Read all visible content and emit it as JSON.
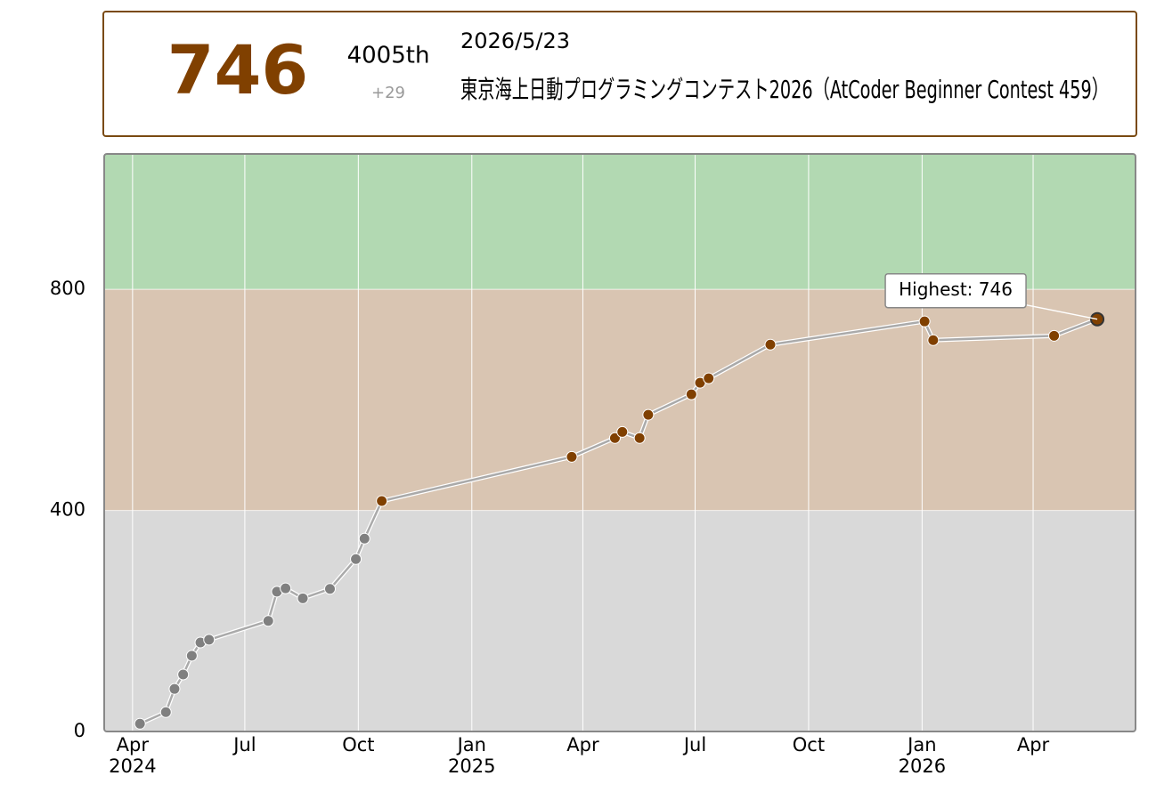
{
  "header": {
    "rating": 746,
    "rank": "4005th",
    "diff": "+29",
    "date": "2026/5/23",
    "contest": "東京海上日動プログラミングコンテスト2026（AtCoder Beginner Contest 459）"
  },
  "chart_data": {
    "type": "line",
    "x": [
      "2024-04-07",
      "2024-04-28",
      "2024-05-05",
      "2024-05-12",
      "2024-05-19",
      "2024-05-26",
      "2024-06-02",
      "2024-07-20",
      "2024-07-27",
      "2024-08-03",
      "2024-08-17",
      "2024-09-08",
      "2024-09-29",
      "2024-10-06",
      "2024-10-20",
      "2025-03-23",
      "2025-04-27",
      "2025-05-03",
      "2025-05-17",
      "2025-05-24",
      "2025-06-28",
      "2025-07-05",
      "2025-07-12",
      "2025-08-31",
      "2026-01-03",
      "2026-01-10",
      "2026-04-18",
      "2026-05-23"
    ],
    "values": [
      14,
      35,
      77,
      103,
      137,
      161,
      166,
      200,
      253,
      259,
      241,
      258,
      312,
      349,
      417,
      497,
      531,
      542,
      531,
      573,
      610,
      631,
      639,
      700,
      742,
      708,
      716,
      746
    ],
    "xlim": [
      "2024-03-09",
      "2026-06-23"
    ],
    "ylim": [
      0,
      1045
    ],
    "yticks": [
      0,
      400,
      800
    ],
    "xticks": [
      {
        "value": "2024-04-01",
        "label": "Apr"
      },
      {
        "value": "2024-07-01",
        "label": "Jul"
      },
      {
        "value": "2024-10-01",
        "label": "Oct"
      },
      {
        "value": "2025-01-01",
        "label": "Jan"
      },
      {
        "value": "2025-04-01",
        "label": "Apr"
      },
      {
        "value": "2025-07-01",
        "label": "Jul"
      },
      {
        "value": "2025-10-01",
        "label": "Oct"
      },
      {
        "value": "2026-01-01",
        "label": "Jan"
      },
      {
        "value": "2026-04-01",
        "label": "Apr"
      }
    ],
    "year_labels": [
      {
        "value": "2024-04-01",
        "label": "2024"
      },
      {
        "value": "2025-01-01",
        "label": "2025"
      },
      {
        "value": "2026-01-01",
        "label": "2026"
      }
    ],
    "bands": [
      {
        "min": 0,
        "max": 400,
        "color": "#d9d9d9",
        "mark": "#808080"
      },
      {
        "min": 400,
        "max": 800,
        "color": "#d9c5b2",
        "mark": "#804000"
      },
      {
        "min": 800,
        "max": 1045,
        "color": "#b2d9b2",
        "mark": "#008000"
      }
    ],
    "grid": true,
    "line_color": "#aaaaaa",
    "annotation": {
      "text": "Highest: 746",
      "x": "2026-05-23",
      "y": 746
    }
  }
}
